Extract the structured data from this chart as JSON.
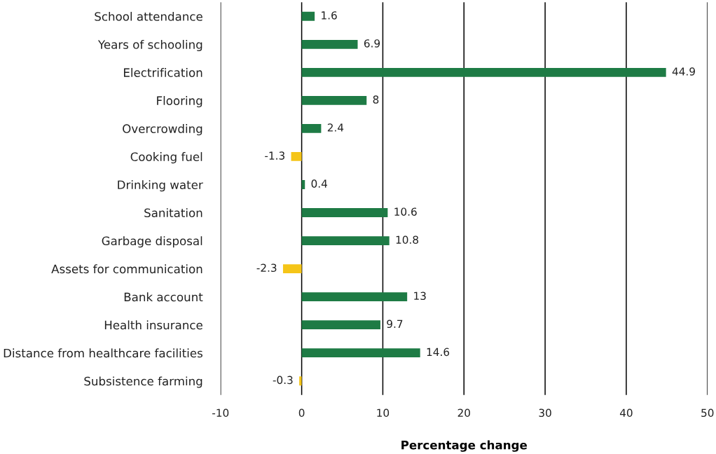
{
  "chart_data": {
    "type": "bar",
    "orientation": "horizontal",
    "xlabel": "Percentage change",
    "categories": [
      "School attendance",
      "Years of schooling",
      "Electrification",
      "Flooring",
      "Overcrowding",
      "Cooking fuel",
      "Drinking water",
      "Sanitation",
      "Garbage disposal",
      "Assets for communication",
      "Bank account",
      "Health insurance",
      "Distance from healthcare facilities",
      "Subsistence farming"
    ],
    "values": [
      1.6,
      6.9,
      44.9,
      8,
      2.4,
      -1.3,
      0.4,
      10.6,
      10.8,
      -2.3,
      13,
      9.7,
      14.6,
      -0.3
    ],
    "colors": [
      "#1e7b45",
      "#1e7b45",
      "#1e7b45",
      "#1e7b45",
      "#1e7b45",
      "#f5c518",
      "#1e7b45",
      "#1e7b45",
      "#1e7b45",
      "#f5c518",
      "#1e7b45",
      "#1e7b45",
      "#1e7b45",
      "#f5c518"
    ],
    "xlim": [
      -10,
      50
    ],
    "xticks": [
      -10,
      0,
      10,
      20,
      30,
      40,
      50
    ],
    "grid": "x",
    "data_labels": true
  }
}
